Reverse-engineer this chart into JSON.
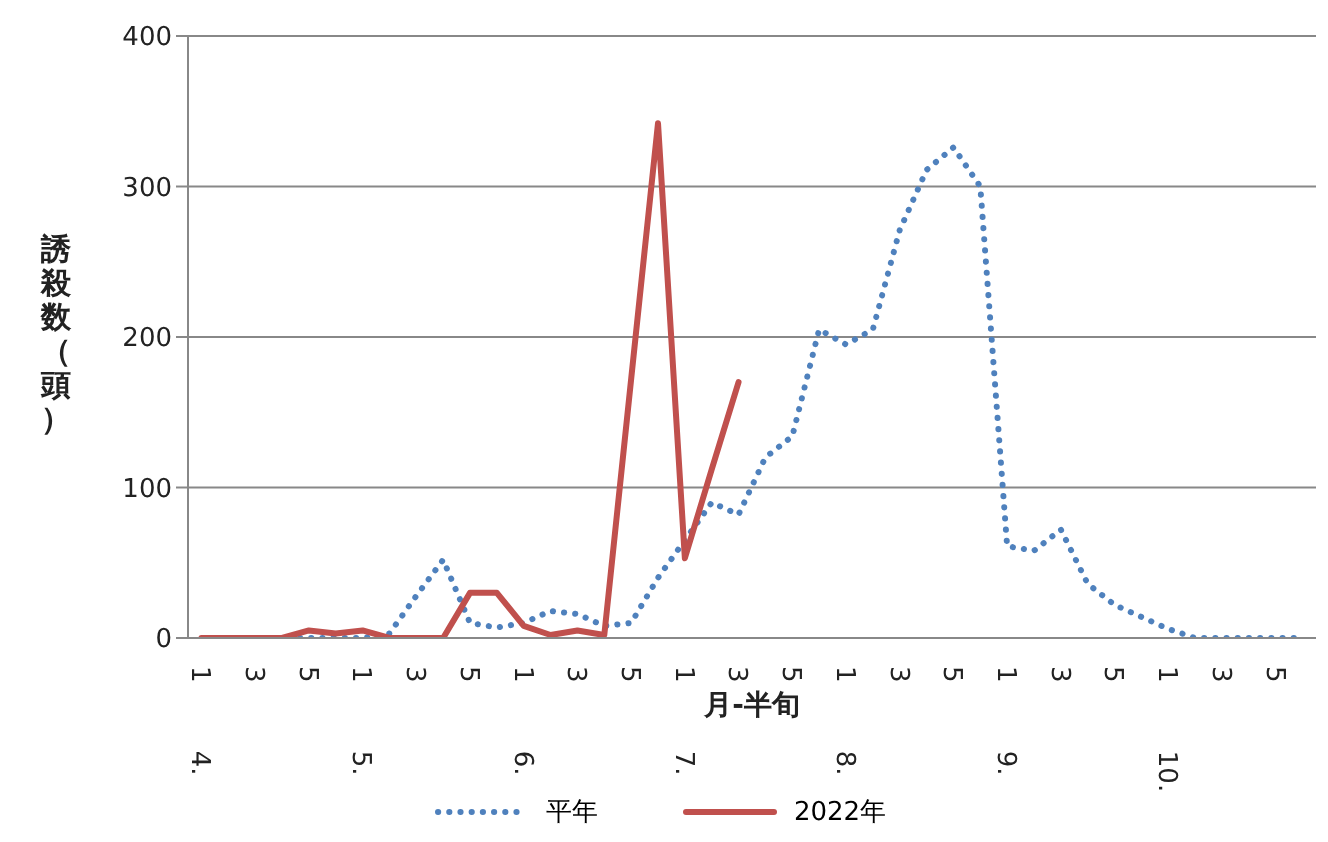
{
  "chart_data": {
    "type": "line",
    "xlabel": "月-半旬",
    "ylabel": "誘殺数（頭）",
    "categories": [
      "1 4.",
      null,
      "3",
      null,
      "5",
      null,
      "1 5.",
      null,
      "3",
      null,
      "5",
      null,
      "1 6.",
      null,
      "3",
      null,
      "5",
      null,
      "1 7.",
      null,
      "3",
      null,
      "5",
      null,
      "1 8.",
      null,
      "3",
      null,
      "5",
      null,
      "1 9.",
      null,
      "3",
      null,
      "5",
      null,
      "1 10.",
      null,
      "3",
      null,
      "5",
      null
    ],
    "series": [
      {
        "name": "平年",
        "color": "#4f81bd",
        "line_style": "dotted",
        "values": [
          null,
          null,
          0,
          0,
          0,
          0,
          0,
          3,
          28,
          52,
          10,
          7,
          10,
          18,
          16,
          8,
          10,
          40,
          65,
          90,
          82,
          120,
          134,
          205,
          195,
          205,
          271,
          311,
          326,
          300,
          61,
          58,
          72,
          36,
          22,
          14,
          6,
          0,
          0,
          0,
          0,
          0
        ]
      },
      {
        "name": "2022年",
        "color": "#c0504d",
        "line_style": "solid",
        "values": [
          0,
          0,
          0,
          0,
          5,
          3,
          5,
          0,
          0,
          0,
          30,
          30,
          8,
          2,
          5,
          2,
          172,
          342,
          53,
          112,
          170,
          null,
          null,
          null,
          null,
          null,
          null,
          null,
          null,
          null,
          null,
          null,
          null,
          null,
          null,
          null,
          null,
          null,
          null,
          null,
          null,
          null
        ]
      }
    ],
    "ylim": [
      0,
      400
    ],
    "yticks": [
      0,
      100,
      200,
      300,
      400
    ],
    "grid": "y",
    "legend": "bottom",
    "marker": "none"
  }
}
